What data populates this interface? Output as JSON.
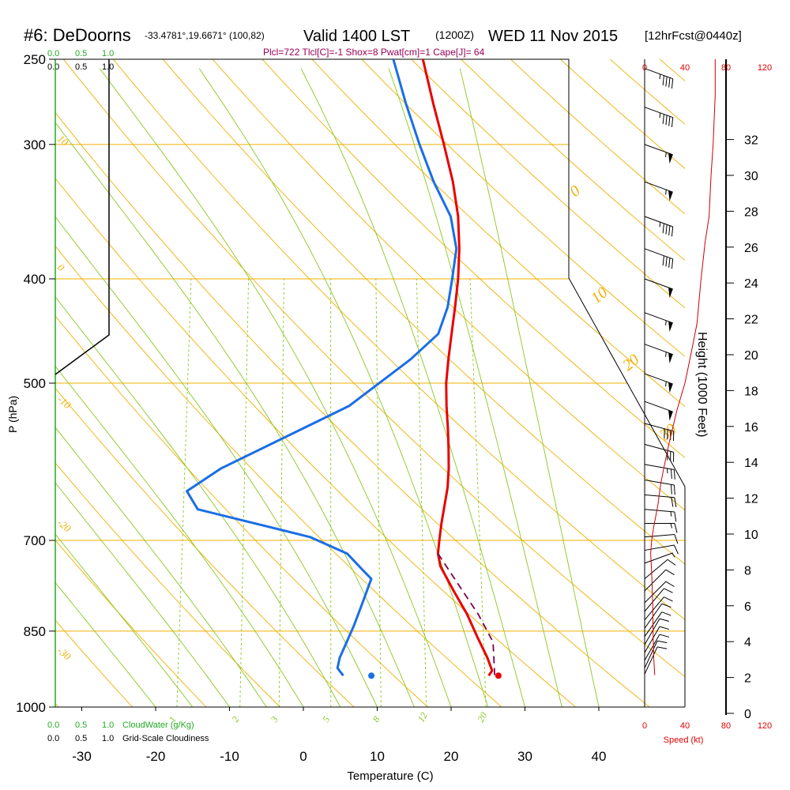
{
  "header": {
    "station": "#6: DeDoorns",
    "coords": "-33.4781°,19.6671° (100,82)",
    "valid": "Valid 1400 LST",
    "utc": "(1200Z)",
    "date": "WED 11 Nov 2015",
    "forecast": "[12hrFcst@0440z]",
    "indices": "Plcl=722 Tlcl[C]=-1 Shox=8 Pwat[cm]=1 Cape[J]= 64"
  },
  "colors": {
    "temperature": "#e80000",
    "dewpoint": "#1a6ee6",
    "parcel": "#7a0050",
    "isobar": "#f0b000",
    "dry_adiabat": "#f0b000",
    "moist_adiabat": "#88c820",
    "mixing_ratio": "#88c820",
    "cloud_water": "#22aa22",
    "wind_speed": "#cc0000",
    "wind_speed_labels": "#e00000",
    "title_indices": "#990055"
  },
  "cloud_scales": {
    "top_labels": [
      "0.0",
      "0.5",
      "1.0"
    ],
    "top_labels_black": [
      "0.0",
      "0.5",
      "1.0"
    ],
    "bottom_water_labels": [
      "0.0",
      "0.5",
      "1.0"
    ],
    "bottom_water_title": "CloudWater (g/Kg)",
    "bottom_cloud_labels": [
      "0.0",
      "0.5",
      "1.0"
    ],
    "bottom_cloud_title": "Grid-Scale Cloudiness"
  },
  "wind_speed_panel": {
    "top_ticks": [
      "0",
      "40",
      "80",
      "120"
    ],
    "bottom_ticks": [
      "0",
      "40",
      "80",
      "120"
    ],
    "title": "Speed (kt)"
  },
  "chart_data": {
    "type": "line",
    "title": "Skew-T log-P sounding",
    "xlabel": "Temperature (C)",
    "ylabel": "P (hPa)",
    "y2label": "Height (1000 Feet)",
    "x_ticks": [
      -30,
      -20,
      -10,
      0,
      10,
      20,
      30,
      40
    ],
    "xlim": [
      -34,
      45
    ],
    "ylim": [
      1000,
      250
    ],
    "p_ticks": [
      250,
      300,
      400,
      500,
      700,
      850,
      1000
    ],
    "height_ticks": [
      0,
      2,
      4,
      6,
      8,
      10,
      12,
      14,
      16,
      18,
      20,
      22,
      24,
      26,
      28,
      30,
      32
    ],
    "dry_adiabat_labels": [
      "10",
      "0",
      "-10",
      "-20",
      "-30"
    ],
    "dry_adiabat_labels_right": [
      "0",
      "10",
      "20",
      "30"
    ],
    "mixing_ratio_labels": [
      "1",
      "2",
      "3",
      "5",
      "8",
      "12",
      "20"
    ],
    "series": [
      {
        "name": "Temperature",
        "points": [
          [
            -2.5,
            250
          ],
          [
            0.2,
            275
          ],
          [
            2.8,
            300
          ],
          [
            5.1,
            325
          ],
          [
            6.8,
            350
          ],
          [
            7.9,
            375
          ],
          [
            8.6,
            400
          ],
          [
            9.0,
            425
          ],
          [
            9.3,
            450
          ],
          [
            9.6,
            475
          ],
          [
            10.0,
            500
          ],
          [
            10.7,
            525
          ],
          [
            11.5,
            550
          ],
          [
            12.2,
            575
          ],
          [
            12.8,
            600
          ],
          [
            13.2,
            625
          ],
          [
            13.3,
            650
          ],
          [
            13.4,
            675
          ],
          [
            13.6,
            700
          ],
          [
            13.8,
            720
          ],
          [
            14.5,
            740
          ],
          [
            17.0,
            780
          ],
          [
            19.5,
            820
          ],
          [
            21.5,
            860
          ],
          [
            23.5,
            900
          ],
          [
            24.5,
            925
          ],
          [
            24.2,
            935
          ]
        ]
      },
      {
        "name": "Dewpoint",
        "points": [
          [
            -6.5,
            250
          ],
          [
            -3.5,
            275
          ],
          [
            -0.5,
            300
          ],
          [
            2.5,
            325
          ],
          [
            5.8,
            350
          ],
          [
            7.5,
            375
          ],
          [
            7.8,
            400
          ],
          [
            8.0,
            425
          ],
          [
            7.5,
            450
          ],
          [
            4.5,
            475
          ],
          [
            -2.5,
            525
          ],
          [
            -18,
            600
          ],
          [
            -22,
            630
          ],
          [
            -20,
            655
          ],
          [
            -4,
            695
          ],
          [
            1.5,
            720
          ],
          [
            4.0,
            745
          ],
          [
            5.5,
            760
          ],
          [
            5.0,
            800
          ],
          [
            4.5,
            840
          ],
          [
            4.0,
            870
          ],
          [
            3.5,
            900
          ],
          [
            3.5,
            920
          ],
          [
            4.5,
            935
          ]
        ]
      },
      {
        "name": "Parcel",
        "points": [
          [
            13.8,
            720
          ],
          [
            17.5,
            770
          ],
          [
            21.0,
            820
          ],
          [
            23.8,
            870
          ],
          [
            25.0,
            935
          ]
        ]
      }
    ],
    "surface_markers": [
      {
        "name": "Surface temperature",
        "value": 25.5,
        "p": 935
      },
      {
        "name": "Surface dewpoint",
        "value": 8.3,
        "p": 935
      }
    ],
    "wind_speed_profile": [
      [
        10,
        934
      ],
      [
        9,
        900
      ],
      [
        8.5,
        860
      ],
      [
        8,
        800
      ],
      [
        7,
        750
      ],
      [
        6,
        720
      ],
      [
        7,
        700
      ],
      [
        9,
        680
      ],
      [
        13,
        650
      ],
      [
        16,
        620
      ],
      [
        19,
        600
      ],
      [
        24,
        570
      ],
      [
        32,
        530
      ],
      [
        40,
        500
      ],
      [
        46,
        470
      ],
      [
        52,
        440
      ],
      [
        56,
        400
      ],
      [
        60,
        370
      ],
      [
        64,
        350
      ],
      [
        66,
        320
      ],
      [
        68,
        300
      ],
      [
        70,
        270
      ],
      [
        70,
        250
      ]
    ],
    "wind_barbs": [
      {
        "p": 255,
        "dir": 290,
        "kt": 45
      },
      {
        "p": 277,
        "dir": 290,
        "kt": 45
      },
      {
        "p": 300,
        "dir": 290,
        "kt": 55
      },
      {
        "p": 325,
        "dir": 290,
        "kt": 55
      },
      {
        "p": 350,
        "dir": 290,
        "kt": 45
      },
      {
        "p": 375,
        "dir": 290,
        "kt": 40
      },
      {
        "p": 400,
        "dir": 290,
        "kt": 50
      },
      {
        "p": 430,
        "dir": 290,
        "kt": 55
      },
      {
        "p": 460,
        "dir": 290,
        "kt": 55
      },
      {
        "p": 490,
        "dir": 290,
        "kt": 55
      },
      {
        "p": 520,
        "dir": 290,
        "kt": 50
      },
      {
        "p": 545,
        "dir": 285,
        "kt": 40
      },
      {
        "p": 570,
        "dir": 285,
        "kt": 30
      },
      {
        "p": 595,
        "dir": 280,
        "kt": 25
      },
      {
        "p": 615,
        "dir": 280,
        "kt": 20
      },
      {
        "p": 635,
        "dir": 275,
        "kt": 20
      },
      {
        "p": 655,
        "dir": 275,
        "kt": 15
      },
      {
        "p": 675,
        "dir": 270,
        "kt": 15
      },
      {
        "p": 695,
        "dir": 265,
        "kt": 10
      },
      {
        "p": 715,
        "dir": 260,
        "kt": 10
      },
      {
        "p": 735,
        "dir": 250,
        "kt": 5
      },
      {
        "p": 760,
        "dir": 230,
        "kt": 10
      },
      {
        "p": 780,
        "dir": 225,
        "kt": 10
      },
      {
        "p": 800,
        "dir": 225,
        "kt": 10
      },
      {
        "p": 815,
        "dir": 220,
        "kt": 10
      },
      {
        "p": 830,
        "dir": 220,
        "kt": 10
      },
      {
        "p": 845,
        "dir": 215,
        "kt": 10
      },
      {
        "p": 860,
        "dir": 215,
        "kt": 10
      },
      {
        "p": 875,
        "dir": 210,
        "kt": 10
      },
      {
        "p": 890,
        "dir": 210,
        "kt": 10
      },
      {
        "p": 905,
        "dir": 210,
        "kt": 10
      },
      {
        "p": 920,
        "dir": 205,
        "kt": 10
      },
      {
        "p": 932,
        "dir": 205,
        "kt": 10
      }
    ]
  }
}
